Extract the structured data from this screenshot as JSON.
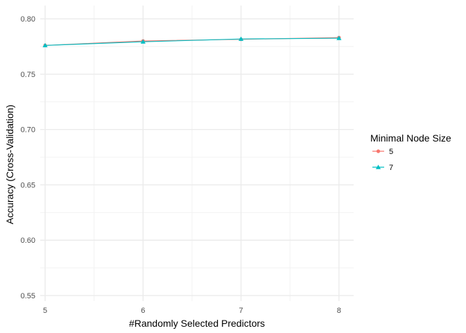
{
  "chart_data": {
    "type": "line",
    "xlabel": "#Randomly Selected Predictors",
    "ylabel": "Accuracy (Cross-Validation)",
    "x": [
      5,
      6,
      7,
      8
    ],
    "xticks": [
      "5",
      "6",
      "7",
      "8"
    ],
    "yticks": [
      "0.55",
      "0.60",
      "0.65",
      "0.70",
      "0.75",
      "0.80"
    ],
    "xlim": [
      4.95,
      8.15
    ],
    "ylim": [
      0.545,
      0.812
    ],
    "grid": true,
    "legend_title": "Minimal Node Size",
    "legend_position": "right",
    "series": [
      {
        "name": "5",
        "values": [
          0.776,
          0.78,
          0.7815,
          0.783
        ],
        "color": "#F8766D",
        "marker": "circle"
      },
      {
        "name": "7",
        "values": [
          0.776,
          0.7793,
          0.7818,
          0.7825
        ],
        "color": "#00BFC4",
        "marker": "triangle"
      }
    ]
  }
}
